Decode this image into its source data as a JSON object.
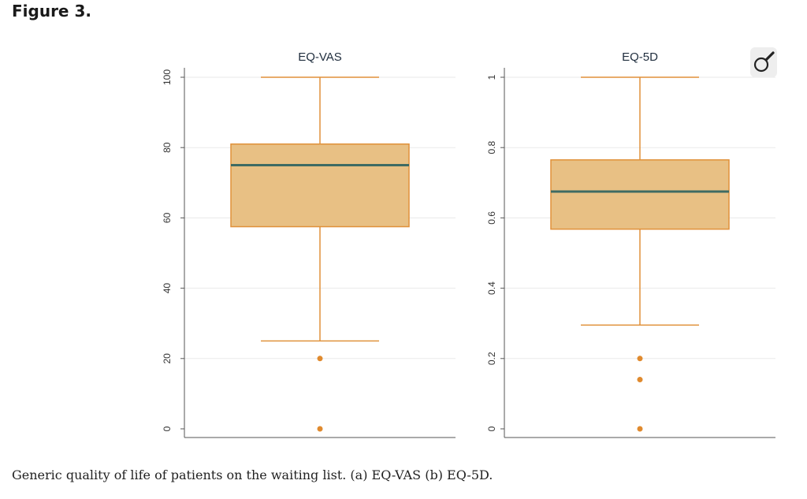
{
  "figure": {
    "title": "Figure 3.",
    "caption": "Generic quality of life of patients on the waiting list. (a) EQ-VAS (b) EQ-5D."
  },
  "zoom": {
    "icon": "magnifier-icon"
  },
  "colors": {
    "box_fill": "#e8c084",
    "box_edge": "#e0913a",
    "median": "#3e6b63",
    "outlier": "#e08a2e",
    "grid": "#eaeaea",
    "axis": "#555555"
  },
  "chart_data": [
    {
      "type": "box",
      "title": "EQ-VAS",
      "ylim": [
        0,
        100
      ],
      "yticks": [
        0,
        20,
        40,
        60,
        80,
        100
      ],
      "ytick_labels": [
        "0",
        "20",
        "40",
        "60",
        "80",
        "100"
      ],
      "box": {
        "whisker_low": 25,
        "q1": 57.5,
        "median": 75,
        "q3": 81,
        "whisker_high": 100
      },
      "outliers": [
        20,
        0
      ]
    },
    {
      "type": "box",
      "title": "EQ-5D",
      "ylim": [
        0,
        1
      ],
      "yticks": [
        0,
        0.2,
        0.4,
        0.6,
        0.8,
        1
      ],
      "ytick_labels": [
        "0",
        "0.2",
        "0.4",
        "0.6",
        "0.8",
        "1"
      ],
      "box": {
        "whisker_low": 0.295,
        "q1": 0.568,
        "median": 0.675,
        "q3": 0.765,
        "whisker_high": 1
      },
      "outliers": [
        0.2,
        0.14,
        0
      ]
    }
  ]
}
